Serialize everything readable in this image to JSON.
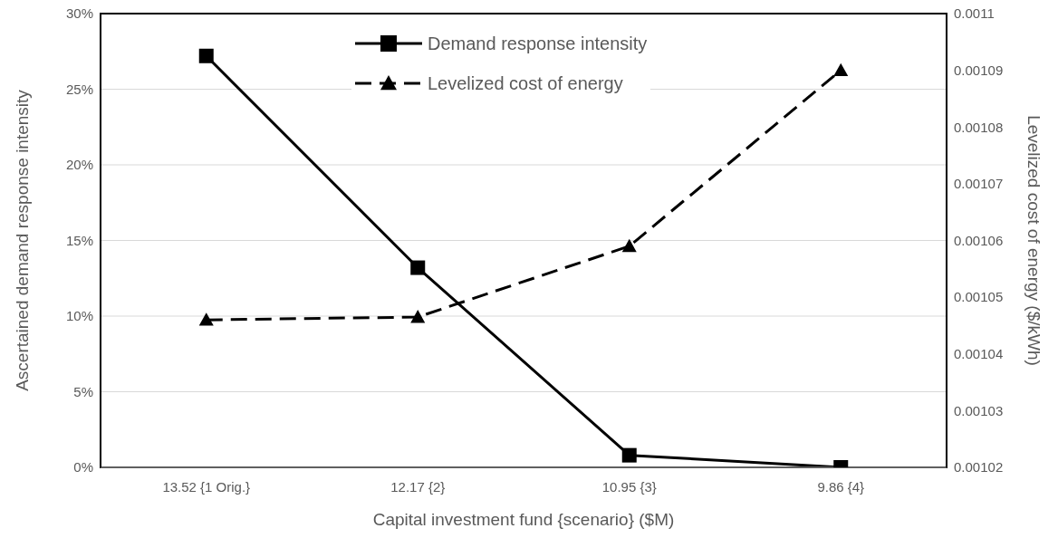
{
  "chart_data": {
    "type": "line",
    "xlabel": "Capital investment fund {scenario} ($M)",
    "ylabel": "Ascertained demand response intensity",
    "y2label": "Levelized cost of energy ($/kWh)",
    "categories": [
      "13.52 {1 Orig.}",
      "12.17 {2}",
      "10.95 {3}",
      "9.86 {4}"
    ],
    "series": [
      {
        "name": "Demand response intensity",
        "color": "#000000",
        "values": [
          27.2,
          13.2,
          0.8,
          0
        ],
        "marker": "square",
        "line_style": "solid"
      },
      {
        "name": "Levelized cost of energy",
        "color": "#000000",
        "values": [
          0.001046,
          0.0010465,
          0.001059,
          0.00109
        ],
        "marker": "triangle",
        "line_style": "dashed",
        "axis": "y2"
      }
    ],
    "ylim": [
      0,
      30
    ],
    "yticks": [
      {
        "value": 0,
        "label": "0%"
      },
      {
        "value": 5,
        "label": "5%"
      },
      {
        "value": 10,
        "label": "10%"
      },
      {
        "value": 15,
        "label": "15%"
      },
      {
        "value": 20,
        "label": "20%"
      },
      {
        "value": 25,
        "label": "25%"
      },
      {
        "value": 30,
        "label": "30%"
      }
    ],
    "y2lim": [
      0.00102,
      0.0011
    ],
    "y2ticks": [
      0.00102,
      0.00103,
      0.00104,
      0.00105,
      0.00106,
      0.00107,
      0.00108,
      0.00109,
      0.0011
    ],
    "grid": "y",
    "legend": "top"
  }
}
